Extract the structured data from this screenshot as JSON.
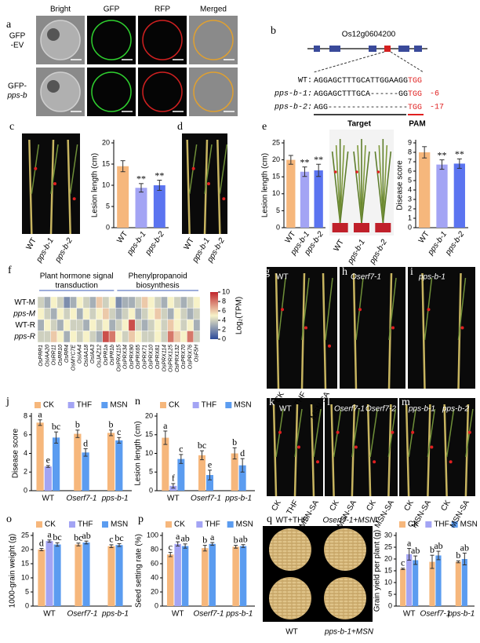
{
  "chart_data": [
    {
      "type": "bar",
      "ylabel": "Lesion length (cm)",
      "categories": [
        "WT",
        "pps-b-1",
        "pps-b-2"
      ],
      "values": [
        14.5,
        9.4,
        10
      ],
      "errors": [
        1.3,
        1,
        1.2
      ],
      "significance": [
        null,
        "**",
        "**"
      ],
      "colors": [
        "#f6b77c",
        "#a3a4f4",
        "#5b74f0"
      ],
      "ylim": [
        0,
        20
      ],
      "yticks": [
        0,
        5,
        10,
        15,
        20
      ]
    },
    {
      "type": "bar",
      "ylabel": "Lesion length (cm)",
      "categories": [
        "WT",
        "pps-b-1",
        "pps-b-2"
      ],
      "values": [
        20,
        16.5,
        16.9
      ],
      "errors": [
        1.3,
        1.4,
        1.8
      ],
      "significance": [
        null,
        "**",
        "**"
      ],
      "colors": [
        "#f6b77c",
        "#a3a4f4",
        "#5b74f0"
      ],
      "ylim": [
        0,
        25
      ],
      "yticks": [
        0,
        5,
        10,
        15,
        20,
        25
      ]
    },
    {
      "type": "bar",
      "ylabel": "Disease score",
      "categories": [
        "WT",
        "pps-b-1",
        "pps-b-2"
      ],
      "values": [
        8,
        6.7,
        6.8
      ],
      "errors": [
        0.6,
        0.5,
        0.5
      ],
      "significance": [
        null,
        "**",
        "**"
      ],
      "colors": [
        "#f6b77c",
        "#a3a4f4",
        "#5b74f0"
      ],
      "ylim": [
        0,
        9
      ],
      "yticks": [
        0,
        1,
        2,
        3,
        4,
        5,
        6,
        7,
        8,
        9
      ]
    },
    {
      "type": "heatmap",
      "panel": "f",
      "group_labels": [
        [
          "Plant hormone signal",
          "transduction"
        ],
        [
          "Phenylpropanoid",
          "biosynthesis"
        ]
      ],
      "rows": [
        "WT-M",
        "pps-M",
        "WT-R",
        "pps-R"
      ],
      "columns": [
        "OsPRR1",
        "OsIAA20",
        "OsRR11",
        "OsRR10",
        "OsRR4",
        "OsMYC7E",
        "OsIAA4",
        "OsIAA18",
        "OsIAA3",
        "OsJAZ12",
        "OsPR1a",
        "OsPR1b",
        "OsPRX115",
        "OsPRX34",
        "OsPRX90",
        "OsPRX65",
        "OsPRX71",
        "OsPRX10",
        "OsPRX81",
        "OsPRX114",
        "OsPRX125",
        "OsPRX132",
        "OsPRX70",
        "OsPRX76",
        "OsF5H"
      ],
      "values": [
        [
          4,
          3,
          5,
          4,
          2,
          3,
          5,
          4,
          3,
          6,
          4,
          5,
          2,
          3,
          3,
          4,
          6,
          5,
          4,
          3,
          5,
          4,
          3,
          4,
          5
        ],
        [
          5,
          4,
          3,
          5,
          4,
          5,
          3,
          5,
          4,
          5,
          6,
          4,
          3,
          4,
          5,
          3,
          4,
          5,
          6,
          4,
          3,
          5,
          4,
          3,
          4
        ],
        [
          3,
          5,
          4,
          3,
          5,
          4,
          4,
          3,
          5,
          4,
          5,
          3,
          4,
          5,
          9,
          4,
          3,
          4,
          5,
          4,
          6,
          5,
          4,
          5,
          3
        ],
        [
          4,
          4,
          6,
          5,
          3,
          5,
          4,
          5,
          4,
          3,
          9,
          8,
          5,
          4,
          6,
          5,
          4,
          4,
          5,
          4,
          8,
          6,
          5,
          8,
          4
        ]
      ],
      "clim": [
        0,
        10
      ],
      "cticks": [
        0,
        2,
        4,
        6,
        8,
        10
      ],
      "colorbar_label": "Log₂(TPM)"
    },
    {
      "type": "grouped_bar",
      "panel": "j",
      "ylabel": "Disease score",
      "categories": [
        "WT",
        "Oserf7-1",
        "pps-b-1"
      ],
      "series": [
        {
          "name": "CK",
          "color": "#f6b77c",
          "values": [
            7.3,
            6.1,
            6.2
          ],
          "errors": [
            0.3,
            0.4,
            0.3
          ],
          "letters": [
            "a",
            "b",
            "b"
          ]
        },
        {
          "name": "THF",
          "color": "#a3a4f4",
          "values": [
            2.6,
            null,
            null
          ],
          "errors": [
            0.1,
            null,
            null
          ],
          "letters": [
            "e",
            null,
            null
          ]
        },
        {
          "name": "MSN",
          "color": "#5b9cf0",
          "values": [
            5.7,
            4.1,
            5.4
          ],
          "errors": [
            0.6,
            0.4,
            0.3
          ],
          "letters": [
            "bc",
            "d",
            "c"
          ]
        }
      ],
      "ylim": [
        0,
        8
      ],
      "yticks": [
        0,
        2,
        4,
        6,
        8
      ]
    },
    {
      "type": "grouped_bar",
      "panel": "n",
      "ylabel": "Lesion length (cm)",
      "categories": [
        "WT",
        "Oserf7-1",
        "pps-b-1"
      ],
      "series": [
        {
          "name": "CK",
          "color": "#f6b77c",
          "values": [
            14.2,
            9.5,
            10
          ],
          "errors": [
            1.8,
            1.2,
            1.5
          ],
          "letters": [
            "a",
            "bc",
            "b"
          ]
        },
        {
          "name": "THF",
          "color": "#a3a4f4",
          "values": [
            1.3,
            null,
            null
          ],
          "errors": [
            0.6,
            null,
            null
          ],
          "letters": [
            "f",
            null,
            null
          ]
        },
        {
          "name": "MSN",
          "color": "#5b9cf0",
          "values": [
            8.5,
            4.2,
            6.8
          ],
          "errors": [
            1.2,
            1.3,
            1.8
          ],
          "letters": [
            "c",
            "e",
            "d"
          ]
        }
      ],
      "ylim": [
        0,
        20
      ],
      "yticks": [
        0,
        5,
        10,
        15,
        20
      ]
    },
    {
      "type": "grouped_bar",
      "panel": "o",
      "ylabel": "1000-grain weight (g)",
      "categories": [
        "WT",
        "Oserf7-1",
        "pps-b-1"
      ],
      "series": [
        {
          "name": "CK",
          "color": "#f6b77c",
          "values": [
            20,
            21.8,
            21.2
          ],
          "errors": [
            0.4,
            0.5,
            0.5
          ],
          "letters": [
            "d",
            "bc",
            "c"
          ]
        },
        {
          "name": "THF",
          "color": "#a3a4f4",
          "values": [
            23,
            null,
            null
          ],
          "errors": [
            0.4,
            null,
            null
          ],
          "letters": [
            "a",
            null,
            null
          ]
        },
        {
          "name": "MSN",
          "color": "#5b9cf0",
          "values": [
            21.8,
            22.5,
            21.6
          ],
          "errors": [
            0.6,
            0.5,
            0.5
          ],
          "letters": [
            "bc",
            "ab",
            "bc"
          ]
        }
      ],
      "ylim": [
        0,
        25
      ],
      "yticks": [
        0,
        5,
        10,
        15,
        20,
        25
      ]
    },
    {
      "type": "grouped_bar",
      "panel": "p",
      "ylabel": "Seed setting rate (%)",
      "categories": [
        "WT",
        "Oserf7-1",
        "pps-b-1"
      ],
      "series": [
        {
          "name": "CK",
          "color": "#f6b77c",
          "values": [
            73,
            82,
            84
          ],
          "errors": [
            3,
            4,
            2
          ],
          "letters": [
            "c",
            "b",
            "b"
          ]
        },
        {
          "name": "THF",
          "color": "#a3a4f4",
          "values": [
            88,
            null,
            null
          ],
          "errors": [
            3,
            null,
            null
          ],
          "letters": [
            "a",
            null,
            null
          ]
        },
        {
          "name": "MSN",
          "color": "#5b9cf0",
          "values": [
            85,
            88,
            85
          ],
          "errors": [
            3,
            2,
            2
          ],
          "letters": [
            "ab",
            "a",
            "ab"
          ]
        }
      ],
      "ylim": [
        0,
        100
      ],
      "yticks": [
        0,
        20,
        40,
        60,
        80,
        100
      ]
    },
    {
      "type": "grouped_bar",
      "panel": "r",
      "ylabel": "Grain yield per plant (g)",
      "categories": [
        "WT",
        "Oserf7-1",
        "pps-b-1"
      ],
      "series": [
        {
          "name": "CK",
          "color": "#f6b77c",
          "values": [
            15.8,
            18.8,
            18.8
          ],
          "errors": [
            0.3,
            2.8,
            0.4
          ],
          "letters": [
            "c",
            "b",
            "b"
          ]
        },
        {
          "name": "THF",
          "color": "#a3a4f4",
          "values": [
            22,
            null,
            null
          ],
          "errors": [
            2.5,
            null,
            null
          ],
          "letters": [
            "a",
            null,
            null
          ]
        },
        {
          "name": "MSN",
          "color": "#5b9cf0",
          "values": [
            19.5,
            21.5,
            20
          ],
          "errors": [
            1.8,
            1.8,
            2.5
          ],
          "letters": [
            "ab",
            "ab",
            "ab"
          ]
        }
      ],
      "ylim": [
        0,
        30
      ],
      "yticks": [
        0,
        5,
        10,
        15,
        20,
        25,
        30
      ]
    }
  ],
  "figure": {
    "gene": {
      "panel": "b",
      "name": "Os12g0604200",
      "target": "Target",
      "pam": "PAM",
      "sequences": [
        {
          "label": "WT:",
          "seq": "AGGAGCTTTGCATTGGAAGG",
          "pam": "TGG"
        },
        {
          "label": "pps-b-1:",
          "seq": "AGGAGCTTTGCA------GG",
          "pam": "TGG",
          "indel": "-6"
        },
        {
          "label": "pps-b-2:",
          "seq": "AGG-----------------",
          "pam": "TGG",
          "indel": "-17"
        }
      ]
    },
    "photos": [
      {
        "panel": "a",
        "texts": [
          "Bright",
          "GFP",
          "RFP",
          "Merged",
          "GFP",
          "-EV",
          "GFP-",
          "pps-b"
        ]
      },
      {
        "panel": "c",
        "texts": [
          "WT",
          "pps-b-1",
          "pps-b-2"
        ]
      },
      {
        "panel": "d",
        "texts": [
          "WT",
          "pps-b-1",
          "pps-b-2"
        ]
      },
      {
        "panel": "e",
        "texts": [
          "WT",
          "pps-b-1",
          "pps-b-2"
        ]
      },
      {
        "panel": "g",
        "texts": [
          "WT",
          "CK",
          "THF",
          "MSN-SA"
        ]
      },
      {
        "panel": "h",
        "texts": [
          "Oserf7-1"
        ]
      },
      {
        "panel": "i",
        "texts": [
          "pps-b-1"
        ]
      },
      {
        "panel": "k",
        "texts": [
          "WT",
          "CK",
          "THF",
          "MSN-SA"
        ]
      },
      {
        "panel": "l",
        "texts": [
          "Oserf7-1",
          "Oserf7-2",
          "CK",
          "MSN-SA",
          "CK",
          "MSN-SA"
        ]
      },
      {
        "panel": "m",
        "texts": [
          "pps-b-1",
          "pps-b-2",
          "CK",
          "MSN-SA",
          "CK",
          "MSN-SA"
        ]
      },
      {
        "panel": "q",
        "texts": [
          "WT+THF",
          "Oserf7-1+MSN",
          "WT",
          "pps-b-1+MSN"
        ]
      }
    ]
  }
}
